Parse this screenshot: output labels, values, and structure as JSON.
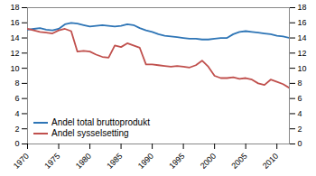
{
  "chart_data": {
    "type": "line",
    "x": [
      1970,
      1971,
      1972,
      1973,
      1974,
      1975,
      1976,
      1977,
      1978,
      1979,
      1980,
      1981,
      1982,
      1983,
      1984,
      1985,
      1986,
      1987,
      1988,
      1989,
      1990,
      1991,
      1992,
      1993,
      1994,
      1995,
      1996,
      1997,
      1998,
      1999,
      2000,
      2001,
      2002,
      2003,
      2004,
      2005,
      2006,
      2007,
      2008,
      2009,
      2010,
      2011,
      2012
    ],
    "series": [
      {
        "name": "Andel total bruttoprodukt",
        "color": "#2E75B6",
        "values": [
          15.1,
          15.2,
          15.3,
          15.1,
          15.0,
          15.2,
          15.8,
          16.0,
          15.9,
          15.7,
          15.5,
          15.6,
          15.7,
          15.6,
          15.5,
          15.6,
          15.8,
          15.7,
          15.3,
          15.0,
          14.8,
          14.5,
          14.3,
          14.2,
          14.1,
          14.0,
          13.9,
          13.9,
          13.8,
          13.8,
          13.9,
          14.0,
          14.0,
          14.5,
          14.8,
          14.9,
          14.8,
          14.7,
          14.6,
          14.5,
          14.3,
          14.2,
          14.0
        ]
      },
      {
        "name": "Andel sysselsetting",
        "color": "#C0504D",
        "values": [
          15.2,
          15.0,
          14.8,
          14.7,
          14.6,
          15.0,
          15.2,
          14.9,
          12.2,
          12.3,
          12.2,
          11.8,
          11.5,
          11.4,
          13.0,
          12.8,
          13.3,
          13.0,
          12.7,
          10.5,
          10.5,
          10.4,
          10.3,
          10.2,
          10.3,
          10.2,
          10.1,
          10.4,
          11.0,
          10.2,
          9.0,
          8.7,
          8.7,
          8.8,
          8.6,
          8.7,
          8.5,
          8.0,
          7.8,
          8.5,
          8.2,
          7.9,
          7.4
        ]
      }
    ],
    "xlim": [
      1970,
      2012
    ],
    "xticks": [
      1970,
      1975,
      1980,
      1985,
      1990,
      1995,
      2000,
      2005,
      2010
    ],
    "ylim": [
      0,
      18
    ],
    "yticks": [
      0,
      2,
      4,
      6,
      8,
      10,
      12,
      14,
      16,
      18
    ],
    "y2lim": [
      0,
      18
    ],
    "y2ticks": [
      0,
      2,
      4,
      6,
      8,
      10,
      12,
      14,
      16,
      18
    ],
    "legend": "lower left",
    "grid": false
  }
}
